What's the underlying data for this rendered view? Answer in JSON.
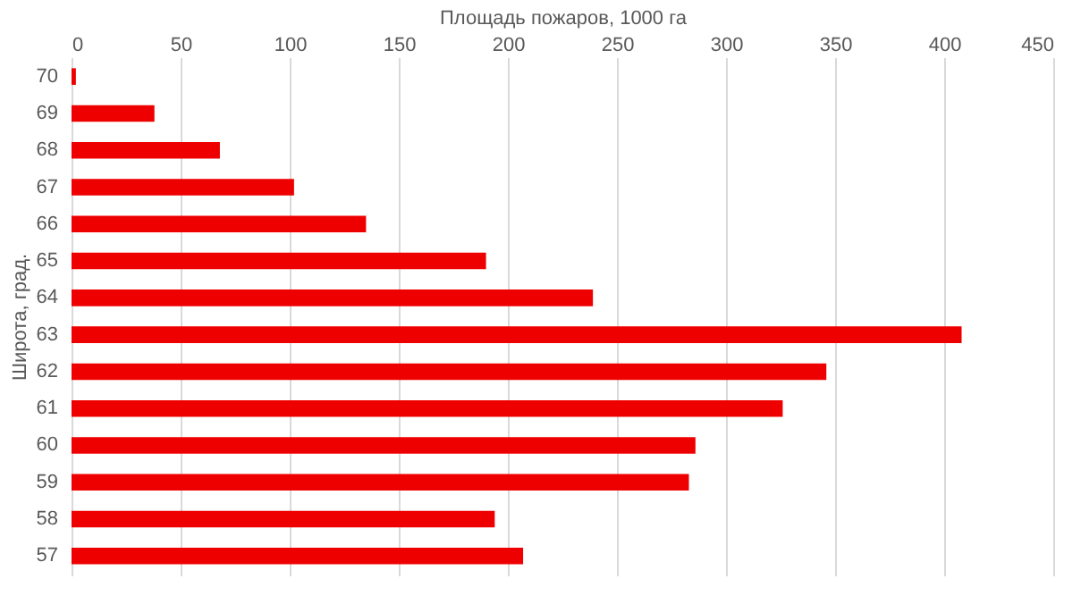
{
  "chart_data": {
    "type": "bar",
    "orientation": "horizontal",
    "xlabel": "Площадь пожаров, 1000 га",
    "ylabel": "Широта, град.",
    "categories": [
      "70",
      "69",
      "68",
      "67",
      "66",
      "65",
      "64",
      "63",
      "62",
      "61",
      "60",
      "59",
      "58",
      "57"
    ],
    "values": [
      2,
      38,
      68,
      102,
      135,
      190,
      239,
      408,
      346,
      326,
      286,
      283,
      194,
      207
    ],
    "color": "#ee0000",
    "xlim": [
      0,
      450
    ],
    "xticks": [
      0,
      50,
      100,
      150,
      200,
      250,
      300,
      350,
      400,
      450
    ],
    "grid": "x"
  }
}
